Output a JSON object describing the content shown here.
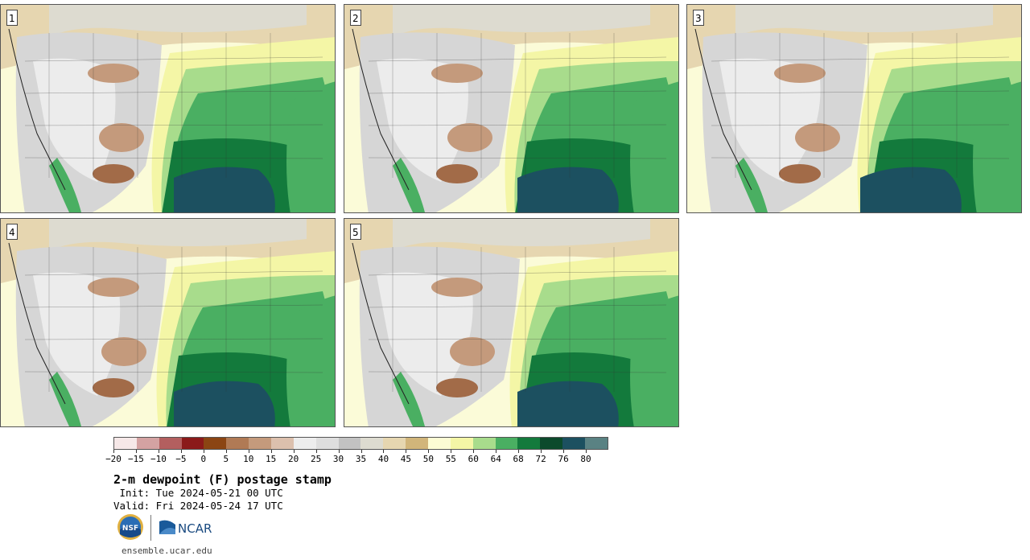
{
  "panels": [
    {
      "label": "1"
    },
    {
      "label": "2"
    },
    {
      "label": "3"
    },
    {
      "label": "4"
    },
    {
      "label": "5"
    }
  ],
  "colorbar": {
    "colors": [
      "#f6e8e8",
      "#d4a2a2",
      "#b35f5f",
      "#8b1a1a",
      "#8b4513",
      "#b07a55",
      "#c49a7c",
      "#dcc0ad",
      "#ededed",
      "#dedede",
      "#c2c2c2",
      "#dddbd0",
      "#e6d6b0",
      "#d1b57a",
      "#fcfcd4",
      "#f4f6a6",
      "#a8dc8c",
      "#4aaf62",
      "#137a3c",
      "#0c4a2c",
      "#1c5060",
      "#5a8283"
    ],
    "ticks": [
      "−20",
      "−15",
      "−10",
      "−5",
      "0",
      "5",
      "10",
      "15",
      "20",
      "25",
      "30",
      "35",
      "40",
      "45",
      "50",
      "55",
      "60",
      "64",
      "68",
      "72",
      "76",
      "80"
    ]
  },
  "title": "2-m dewpoint (F) postage stamp",
  "init": " Init: Tue 2024-05-21 00 UTC",
  "valid": "Valid: Fri 2024-05-24 17 UTC",
  "logos": {
    "nsf": "NSF",
    "ncar": "NCAR"
  },
  "url": "ensemble.ucar.edu"
}
